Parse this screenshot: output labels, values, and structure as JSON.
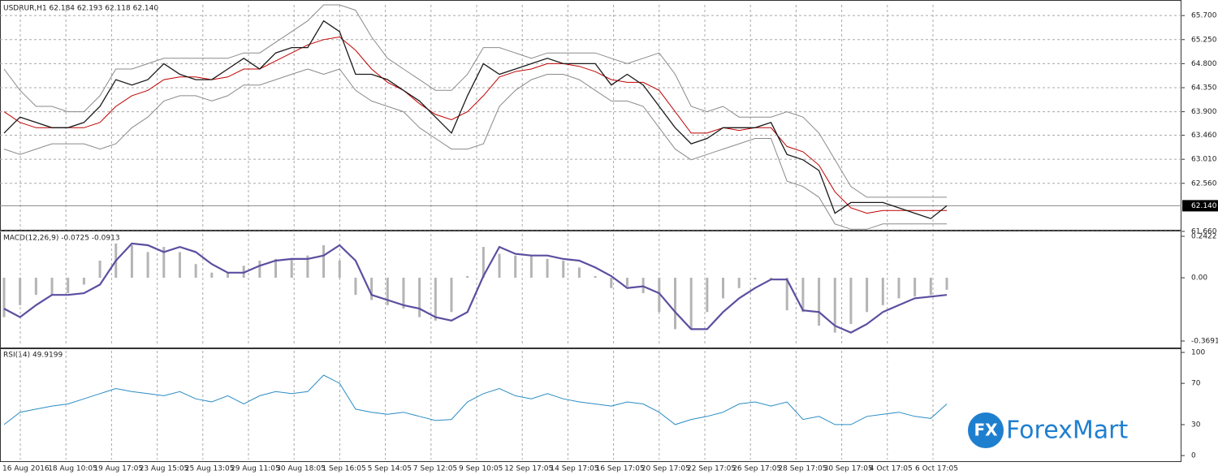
{
  "chart_data": [
    {
      "type": "line",
      "title": "USDRUR,H1  62.184 62.193 62.118 62.140",
      "ylim": [
        61.69,
        65.9
      ],
      "yticks": [
        {
          "value": 65.7,
          "label": "65.700"
        },
        {
          "value": 65.25,
          "label": "65.250"
        },
        {
          "value": 64.8,
          "label": "64.800"
        },
        {
          "value": 64.35,
          "label": "64.350"
        },
        {
          "value": 63.9,
          "label": "63.900"
        },
        {
          "value": 63.46,
          "label": "63.460"
        },
        {
          "value": 63.01,
          "label": "63.010"
        },
        {
          "value": 62.56,
          "label": "62.560"
        },
        {
          "value": 61.66,
          "label": "61.660"
        }
      ],
      "price_marker": {
        "value": 62.14,
        "label": "62.140"
      },
      "grid": true,
      "series": [
        {
          "color": "#8a8a8a",
          "values": [
            64.7,
            64.3,
            64.0,
            64.0,
            63.9,
            63.9,
            64.2,
            64.7,
            64.7,
            64.8,
            64.9,
            64.9,
            64.9,
            64.9,
            64.9,
            65.0,
            65.0,
            65.2,
            65.4,
            65.6,
            65.9,
            65.9,
            65.8,
            65.3,
            64.9,
            64.7,
            64.5,
            64.3,
            64.3,
            64.6,
            65.1,
            65.1,
            65.0,
            64.9,
            65.0,
            65.0,
            65.0,
            65.0,
            64.9,
            64.8,
            64.9,
            65.0,
            64.6,
            64.0,
            63.9,
            64.0,
            63.8,
            63.8,
            63.8,
            63.9,
            63.8,
            63.5,
            63.0,
            62.5,
            62.3,
            62.3,
            62.3,
            62.3,
            62.3,
            62.3
          ]
        },
        {
          "color": "#8a8a8a",
          "values": [
            63.2,
            63.1,
            63.2,
            63.3,
            63.3,
            63.3,
            63.2,
            63.3,
            63.6,
            63.8,
            64.1,
            64.2,
            64.2,
            64.1,
            64.2,
            64.4,
            64.4,
            64.5,
            64.6,
            64.7,
            64.6,
            64.7,
            64.3,
            64.1,
            64.0,
            63.9,
            63.6,
            63.4,
            63.2,
            63.2,
            63.3,
            64.0,
            64.3,
            64.5,
            64.6,
            64.6,
            64.5,
            64.3,
            64.1,
            64.1,
            64.0,
            63.6,
            63.2,
            63.0,
            63.1,
            63.2,
            63.3,
            63.4,
            63.4,
            62.6,
            62.5,
            62.3,
            61.8,
            61.7,
            61.7,
            61.8,
            61.8,
            61.8,
            61.8,
            61.8
          ]
        },
        {
          "color": "#c00000",
          "values": [
            63.9,
            63.7,
            63.6,
            63.6,
            63.6,
            63.6,
            63.7,
            64.0,
            64.2,
            64.3,
            64.5,
            64.55,
            64.55,
            64.5,
            64.55,
            64.7,
            64.7,
            64.85,
            65.0,
            65.15,
            65.25,
            65.3,
            65.05,
            64.7,
            64.45,
            64.3,
            64.05,
            63.85,
            63.75,
            63.9,
            64.2,
            64.55,
            64.65,
            64.7,
            64.8,
            64.8,
            64.75,
            64.65,
            64.5,
            64.45,
            64.45,
            64.3,
            63.9,
            63.5,
            63.5,
            63.6,
            63.55,
            63.6,
            63.6,
            63.25,
            63.15,
            62.9,
            62.4,
            62.1,
            62.0,
            62.05,
            62.05,
            62.05,
            62.05,
            62.05
          ]
        },
        {
          "color": "#1a1a1a",
          "values": [
            63.5,
            63.8,
            63.7,
            63.6,
            63.6,
            63.7,
            64.0,
            64.5,
            64.4,
            64.5,
            64.8,
            64.6,
            64.5,
            64.5,
            64.7,
            64.9,
            64.7,
            65.0,
            65.1,
            65.1,
            65.6,
            65.4,
            64.6,
            64.6,
            64.5,
            64.3,
            64.1,
            63.8,
            63.5,
            64.2,
            64.8,
            64.6,
            64.7,
            64.8,
            64.9,
            64.8,
            64.8,
            64.8,
            64.4,
            64.6,
            64.4,
            64.0,
            63.6,
            63.3,
            63.4,
            63.6,
            63.6,
            63.6,
            63.7,
            63.1,
            63.0,
            62.8,
            62.0,
            62.2,
            62.2,
            62.2,
            62.1,
            62.0,
            61.9,
            62.14
          ]
        }
      ]
    },
    {
      "type": "macd",
      "title": "MACD(12,26,9) -0.0725 -0.0913",
      "ylim": [
        -0.393,
        0.2564
      ],
      "yticks": [
        {
          "value": 0.2422,
          "label": "0.2422"
        },
        {
          "value": 0,
          "label": "0.00"
        },
        {
          "value": -0.3691,
          "label": "-0.3691"
        }
      ],
      "grid": true,
      "histogram": {
        "color": "#b4b4b4",
        "values": [
          -0.23,
          -0.16,
          -0.1,
          -0.1,
          -0.09,
          -0.04,
          0.1,
          0.2,
          0.19,
          0.15,
          0.18,
          0.15,
          0.08,
          0.03,
          0.03,
          0.07,
          0.1,
          0.11,
          0.11,
          0.13,
          0.19,
          0.1,
          -0.1,
          -0.13,
          -0.16,
          -0.18,
          -0.23,
          -0.25,
          -0.2,
          0.01,
          0.18,
          0.14,
          0.13,
          0.13,
          0.11,
          0.1,
          0.06,
          0.01,
          -0.06,
          -0.05,
          -0.09,
          -0.2,
          -0.3,
          -0.3,
          -0.2,
          -0.12,
          -0.06,
          -0.01,
          -0.01,
          -0.19,
          -0.2,
          -0.28,
          -0.32,
          -0.27,
          -0.2,
          -0.16,
          -0.12,
          -0.11,
          -0.1,
          -0.07
        ]
      },
      "signal": {
        "color": "#5a4fa0",
        "values": [
          -0.18,
          -0.23,
          -0.16,
          -0.1,
          -0.1,
          -0.09,
          -0.04,
          0.1,
          0.2,
          0.19,
          0.15,
          0.18,
          0.15,
          0.08,
          0.03,
          0.03,
          0.07,
          0.1,
          0.11,
          0.11,
          0.13,
          0.19,
          0.1,
          -0.1,
          -0.13,
          -0.16,
          -0.18,
          -0.23,
          -0.25,
          -0.2,
          0.01,
          0.18,
          0.14,
          0.13,
          0.13,
          0.11,
          0.1,
          0.06,
          0.01,
          -0.06,
          -0.05,
          -0.09,
          -0.2,
          -0.3,
          -0.3,
          -0.2,
          -0.12,
          -0.06,
          -0.01,
          -0.01,
          -0.19,
          -0.2,
          -0.28,
          -0.32,
          -0.27,
          -0.2,
          -0.16,
          -0.12,
          -0.11,
          -0.1
        ]
      }
    },
    {
      "type": "rsi",
      "title": "RSI(14) 49.9199",
      "ylim": [
        -3.9,
        101.6
      ],
      "yticks": [
        100,
        70,
        30,
        0
      ],
      "grid": true,
      "color": "#2a8cc4",
      "values": [
        30,
        42,
        45,
        48,
        50,
        55,
        60,
        65,
        62,
        60,
        58,
        62,
        55,
        52,
        58,
        50,
        58,
        62,
        60,
        62,
        78,
        70,
        45,
        42,
        40,
        42,
        38,
        34,
        35,
        52,
        60,
        65,
        58,
        55,
        60,
        55,
        52,
        50,
        48,
        52,
        50,
        42,
        30,
        35,
        38,
        42,
        50,
        52,
        48,
        52,
        35,
        38,
        30,
        30,
        38,
        40,
        42,
        38,
        36,
        50
      ],
      "x_labels": [
        "16 Aug 2016",
        "18 Aug 10:05",
        "19 Aug 17:05",
        "23 Aug 15:05",
        "25 Aug 13:05",
        "29 Aug 11:05",
        "30 Aug 18:05",
        "1 Sep 16:05",
        "5 Sep 14:05",
        "7 Sep 12:05",
        "9 Sep 10:05",
        "12 Sep 17:05",
        "14 Sep 17:05",
        "16 Sep 17:05",
        "20 Sep 17:05",
        "22 Sep 17:05",
        "26 Sep 17:05",
        "28 Sep 17:05",
        "30 Sep 17:05",
        "4 Oct 17:05",
        "6 Oct 17:05"
      ]
    }
  ],
  "logo": {
    "mark": "FX",
    "name": "ForexMart"
  }
}
